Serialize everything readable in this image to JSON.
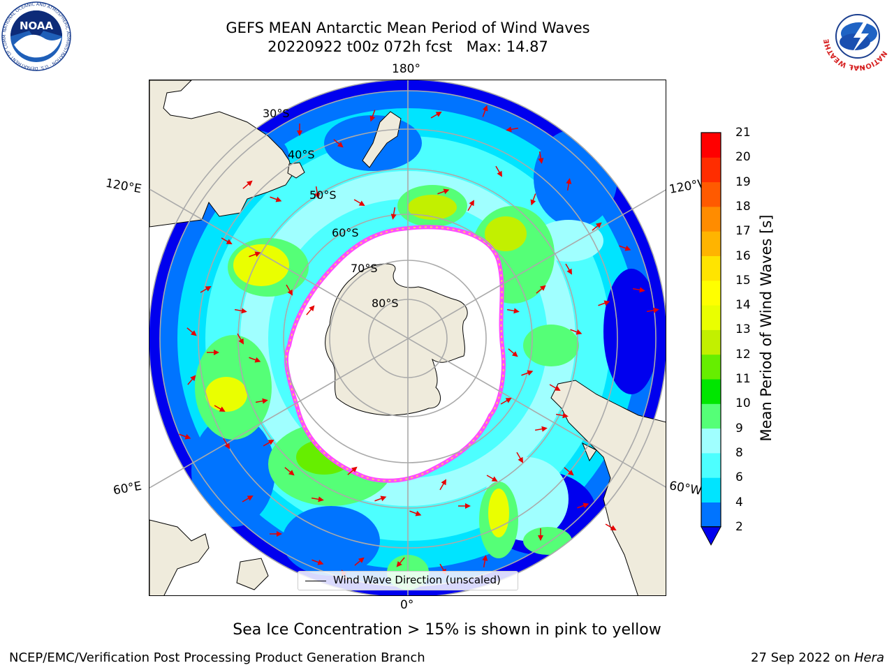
{
  "header": {
    "title": "GEFS MEAN Antarctic Mean Period of Wind Waves",
    "subtitle": "20220922 t00z 072h fcst   Max: 14.87"
  },
  "logos": {
    "noaa_text": "NOAA",
    "noaa_ring_text": "NATIONAL OCEANIC AND ATMOSPHERIC ADMINISTRATION · U.S. DEPARTMENT OF COMMERCE",
    "nws_ring_text": "NATIONAL WEATHER SERVICE"
  },
  "map": {
    "projection": "south-polar-stereographic",
    "longitude_labels": {
      "top": "180°",
      "bottom": "0°",
      "left_upper": "120°E",
      "left_lower": "60°E",
      "right_upper": "120°W",
      "right_lower": "60°W"
    },
    "latitude_labels": [
      "30°S",
      "40°S",
      "50°S",
      "60°S",
      "70°S",
      "80°S"
    ],
    "gridlines": true,
    "land_color": "#efebdc",
    "ice_edge_colors": [
      "#ff4dff",
      "#ff99cc",
      "#ffcc66"
    ],
    "legend": {
      "label": "Wind Wave Direction (unscaled)",
      "placement": "lower-center"
    }
  },
  "colorbar": {
    "label": "Mean Period of Wind Waves [s]",
    "ticks": [
      "21",
      "20",
      "19",
      "18",
      "17",
      "16",
      "15",
      "14",
      "13",
      "12",
      "11",
      "10",
      "9",
      "8",
      "6",
      "4",
      "2"
    ],
    "levels": [
      2,
      4,
      6,
      8,
      9,
      10,
      11,
      12,
      13,
      14,
      15,
      16,
      17,
      18,
      19,
      20,
      21
    ],
    "colors": [
      "#0074ff",
      "#00e4ff",
      "#4dffff",
      "#a0ffff",
      "#55ff77",
      "#00e600",
      "#66ee00",
      "#c2f000",
      "#eaff00",
      "#ffff00",
      "#ffe400",
      "#ffb400",
      "#ff8c00",
      "#ff5a00",
      "#ff2d00",
      "#ff0000"
    ],
    "under_color": "#0000ee",
    "extend": "min"
  },
  "chart_data": {
    "type": "heatmap",
    "title": "GEFS MEAN Antarctic Mean Period of Wind Waves",
    "subtitle": "20220922 t00z 072h fcst   Max: 14.87",
    "colorbar_label": "Mean Period of Wind Waves [s]",
    "value_range": [
      2,
      21
    ],
    "max_value": 14.87
  },
  "caption": "Sea Ice Concentration > 15% is shown in pink to yellow",
  "footer": {
    "left": "NCEP/EMC/Verification Post Processing Product Generation Branch",
    "right_prefix": "27 Sep 2022 on ",
    "right_host": "Hera"
  }
}
